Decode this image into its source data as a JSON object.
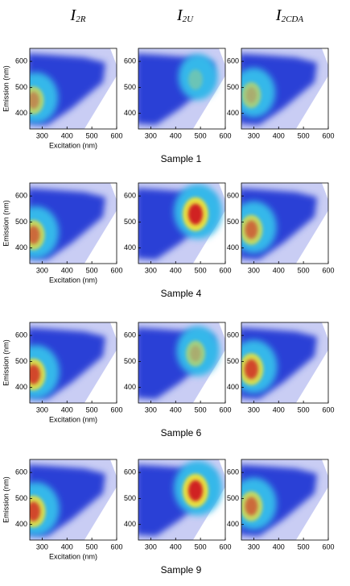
{
  "columns": [
    {
      "symbol": "I",
      "subscript": "2R"
    },
    {
      "symbol": "I",
      "subscript": "2U"
    },
    {
      "symbol": "I",
      "subscript": "2CDA"
    }
  ],
  "rows": [
    "Sample 1",
    "Sample 4",
    "Sample 6",
    "Sample 9"
  ],
  "axes": {
    "xlabel": "Excitation (nm)",
    "ylabel": "Emission (nm)",
    "xlim": [
      250,
      600
    ],
    "ylim": [
      340,
      650
    ],
    "xticks": [
      300,
      400,
      500,
      600
    ],
    "yticks": [
      400,
      500,
      600
    ]
  }
}
